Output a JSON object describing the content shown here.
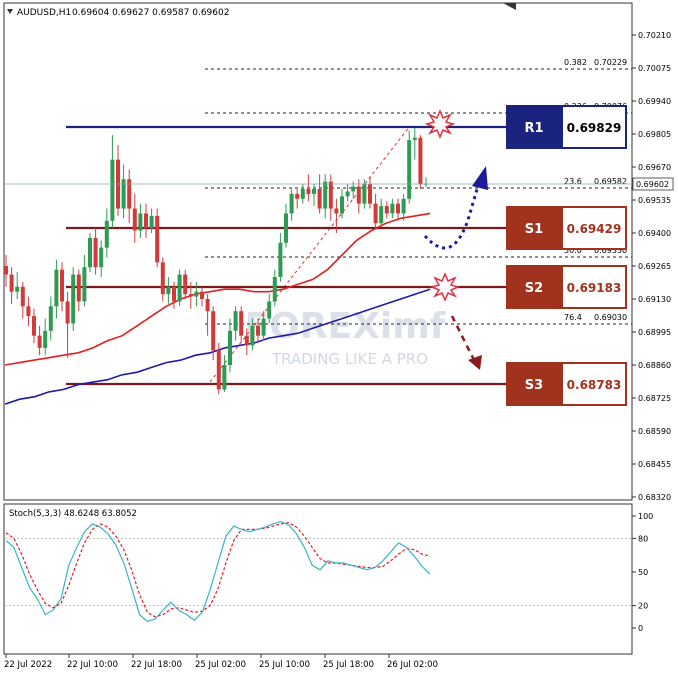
{
  "header": {
    "symbol": "AUDUSD,H1",
    "ohlc": "0.69604 0.69627 0.69587 0.69602"
  },
  "watermark": {
    "brand": "FOREXimf",
    "tagline": "TRADING LIKE A PRO"
  },
  "colors": {
    "bull": "#2e9a52",
    "bear": "#d23a3a",
    "ma_fast": "#e02020",
    "ma_slow": "#1c1ca8",
    "fib": "#222222",
    "r1": "#1a237e",
    "support": "#7a1a1a",
    "support_box": "#a0321e",
    "stoch_main": "#3bb3c8",
    "stoch_signal": "#e02020",
    "arrow_up": "#1c1c9a",
    "arrow_down": "#8b1a1a"
  },
  "chart_data": [
    {
      "type": "candlestick",
      "ylim": [
        0.6827,
        0.703
      ],
      "y_ticks": [
        "0.70210",
        "0.70075",
        "0.69940",
        "0.69805",
        "0.69670",
        "0.69535",
        "0.69400",
        "0.69265",
        "0.69130",
        "0.68995",
        "0.68860",
        "0.68725",
        "0.68590",
        "0.68455",
        "0.68320"
      ],
      "x_ticks": [
        "22 Jul 2022",
        "22 Jul 10:00",
        "22 Jul 18:00",
        "25 Jul 02:00",
        "25 Jul 10:00",
        "25 Jul 18:00",
        "26 Jul 02:00"
      ],
      "current_price": "0.69602",
      "candles": [
        [
          0.69265,
          0.6923,
          0.6931,
          0.6918
        ],
        [
          0.6923,
          0.6916,
          0.6926,
          0.6911
        ],
        [
          0.6916,
          0.6918,
          0.6924,
          0.6913
        ],
        [
          0.6918,
          0.691,
          0.692,
          0.6905
        ],
        [
          0.691,
          0.6906,
          0.6914,
          0.6902
        ],
        [
          0.6906,
          0.6898,
          0.6909,
          0.6895
        ],
        [
          0.6898,
          0.6893,
          0.6902,
          0.689
        ],
        [
          0.6893,
          0.69,
          0.6905,
          0.689
        ],
        [
          0.69,
          0.691,
          0.6914,
          0.6896
        ],
        [
          0.691,
          0.6925,
          0.6929,
          0.6905
        ],
        [
          0.6925,
          0.6912,
          0.6928,
          0.6908
        ],
        [
          0.6912,
          0.6903,
          0.6916,
          0.6889
        ],
        [
          0.6903,
          0.6923,
          0.6926,
          0.69
        ],
        [
          0.6923,
          0.6912,
          0.6925,
          0.6908
        ],
        [
          0.6912,
          0.6926,
          0.6931,
          0.691
        ],
        [
          0.6926,
          0.6938,
          0.694,
          0.6924
        ],
        [
          0.6938,
          0.6926,
          0.6942,
          0.6923
        ],
        [
          0.6926,
          0.6934,
          0.6937,
          0.6922
        ],
        [
          0.6934,
          0.6945,
          0.695,
          0.693
        ],
        [
          0.6945,
          0.697,
          0.698,
          0.6942
        ],
        [
          0.697,
          0.695,
          0.6976,
          0.6947
        ],
        [
          0.695,
          0.6962,
          0.6968,
          0.6946
        ],
        [
          0.6962,
          0.695,
          0.6966,
          0.6944
        ],
        [
          0.695,
          0.6941,
          0.6956,
          0.6936
        ],
        [
          0.6941,
          0.6948,
          0.6952,
          0.6938
        ],
        [
          0.6948,
          0.6942,
          0.6952,
          0.6938
        ],
        [
          0.6942,
          0.6947,
          0.695,
          0.694
        ],
        [
          0.6947,
          0.6928,
          0.695,
          0.6926
        ],
        [
          0.6928,
          0.6915,
          0.693,
          0.6912
        ],
        [
          0.6915,
          0.6918,
          0.6922,
          0.6911
        ],
        [
          0.6918,
          0.6912,
          0.692,
          0.6909
        ],
        [
          0.6912,
          0.6923,
          0.6925,
          0.691
        ],
        [
          0.6923,
          0.6915,
          0.6925,
          0.6913
        ],
        [
          0.6915,
          0.6914,
          0.692,
          0.6909
        ],
        [
          0.6914,
          0.6916,
          0.692,
          0.691
        ],
        [
          0.6916,
          0.6913,
          0.6918,
          0.691
        ],
        [
          0.6913,
          0.6908,
          0.6915,
          0.6898
        ],
        [
          0.6908,
          0.6892,
          0.691,
          0.6888
        ],
        [
          0.6892,
          0.6876,
          0.6895,
          0.6874
        ],
        [
          0.6876,
          0.6886,
          0.689,
          0.6875
        ],
        [
          0.6886,
          0.69,
          0.6905,
          0.6883
        ],
        [
          0.69,
          0.6908,
          0.691,
          0.6896
        ],
        [
          0.6908,
          0.6898,
          0.691,
          0.6895
        ],
        [
          0.6898,
          0.6894,
          0.6901,
          0.689
        ],
        [
          0.6894,
          0.6902,
          0.6905,
          0.6892
        ],
        [
          0.6902,
          0.6898,
          0.6905,
          0.6895
        ],
        [
          0.6898,
          0.6905,
          0.6908,
          0.6896
        ],
        [
          0.6905,
          0.6912,
          0.6915,
          0.6903
        ],
        [
          0.6912,
          0.6922,
          0.6925,
          0.691
        ],
        [
          0.6922,
          0.6936,
          0.694,
          0.692
        ],
        [
          0.6936,
          0.6948,
          0.6952,
          0.6934
        ],
        [
          0.6948,
          0.6956,
          0.6958,
          0.6945
        ],
        [
          0.6956,
          0.6954,
          0.6958,
          0.695
        ],
        [
          0.6954,
          0.6958,
          0.696,
          0.6952
        ],
        [
          0.6958,
          0.6956,
          0.6964,
          0.6953
        ],
        [
          0.6956,
          0.6958,
          0.696,
          0.6951
        ],
        [
          0.6958,
          0.695,
          0.6964,
          0.6948
        ],
        [
          0.695,
          0.6961,
          0.6964,
          0.6946
        ],
        [
          0.6961,
          0.695,
          0.6964,
          0.6945
        ],
        [
          0.695,
          0.6948,
          0.6954,
          0.694
        ],
        [
          0.6948,
          0.6955,
          0.6958,
          0.6946
        ],
        [
          0.6955,
          0.6957,
          0.696,
          0.6953
        ],
        [
          0.6957,
          0.6959,
          0.6961,
          0.6954
        ],
        [
          0.6959,
          0.6952,
          0.6962,
          0.6948
        ],
        [
          0.6952,
          0.696,
          0.6962,
          0.695
        ],
        [
          0.696,
          0.6952,
          0.6963,
          0.695
        ],
        [
          0.6952,
          0.6944,
          0.6956,
          0.6942
        ],
        [
          0.6944,
          0.6951,
          0.6954,
          0.6943
        ],
        [
          0.6951,
          0.6948,
          0.6953,
          0.6946
        ],
        [
          0.6948,
          0.6952,
          0.6954,
          0.6946
        ],
        [
          0.6952,
          0.6948,
          0.6954,
          0.6945
        ],
        [
          0.6948,
          0.6954,
          0.6956,
          0.6945
        ],
        [
          0.6954,
          0.6978,
          0.6982,
          0.6952
        ],
        [
          0.6978,
          0.6979,
          0.69829,
          0.697
        ],
        [
          0.6979,
          0.696,
          0.698,
          0.6958
        ],
        [
          0.696,
          0.69602,
          0.69627,
          0.69587
        ]
      ],
      "ma_fast": [
        0.6886,
        0.6887,
        0.6888,
        0.6889,
        0.689,
        0.6891,
        0.6893,
        0.6896,
        0.6898,
        0.6902,
        0.6906,
        0.691,
        0.6913,
        0.6915,
        0.6916,
        0.6917,
        0.6917,
        0.6916,
        0.6916,
        0.6917,
        0.6919,
        0.6921,
        0.6925,
        0.6931,
        0.6937,
        0.6941,
        0.6944,
        0.6946,
        0.6947,
        0.6948
      ],
      "ma_slow": [
        0.687,
        0.6872,
        0.6873,
        0.6875,
        0.6876,
        0.6878,
        0.6879,
        0.688,
        0.6882,
        0.6883,
        0.6885,
        0.6887,
        0.6888,
        0.689,
        0.6891,
        0.6893,
        0.6894,
        0.6895,
        0.6897,
        0.6898,
        0.6899,
        0.6901,
        0.6903,
        0.6905,
        0.6907,
        0.6909,
        0.6911,
        0.6913,
        0.6915,
        0.6917
      ]
    },
    {
      "type": "line",
      "title": "Stoch(5,3,3) 48.6248 63.8052",
      "ylim": [
        0,
        100
      ],
      "y_ticks": [
        "100",
        "80",
        "50",
        "20",
        "0"
      ],
      "series": [
        {
          "name": "main",
          "values": [
            78,
            72,
            54,
            36,
            26,
            12,
            16,
            26,
            56,
            72,
            86,
            93,
            90,
            84,
            74,
            58,
            36,
            12,
            6,
            8,
            16,
            23,
            16,
            12,
            7,
            14,
            34,
            58,
            82,
            91,
            88,
            86,
            88,
            90,
            93,
            95,
            92,
            84,
            72,
            56,
            52,
            60,
            58,
            58,
            56,
            54,
            52,
            54,
            60,
            68,
            76,
            72,
            64,
            55,
            48
          ]
        },
        {
          "name": "signal",
          "values": [
            85,
            80,
            66,
            48,
            34,
            22,
            18,
            22,
            38,
            58,
            76,
            88,
            93,
            90,
            82,
            70,
            52,
            30,
            14,
            10,
            12,
            17,
            18,
            16,
            14,
            15,
            20,
            35,
            58,
            78,
            88,
            88,
            88,
            89,
            91,
            93,
            94,
            90,
            82,
            72,
            62,
            58,
            58,
            57,
            56,
            55,
            54,
            54,
            55,
            60,
            66,
            71,
            70,
            66,
            64
          ]
        }
      ]
    }
  ],
  "fib_levels": [
    {
      "ratio": "0.382",
      "price": "0.70229"
    },
    {
      "ratio": "0.236",
      "price": "0.70076"
    },
    {
      "ratio": "23.6",
      "price": "0.69582"
    },
    {
      "ratio": "50.0",
      "price": "0.69330"
    },
    {
      "ratio": "76.4",
      "price": "0.69030"
    }
  ],
  "levels": [
    {
      "label": "R1",
      "price": "0.69829"
    },
    {
      "label": "S1",
      "price": "0.69429"
    },
    {
      "label": "S2",
      "price": "0.69183"
    },
    {
      "label": "S3",
      "price": "0.68783"
    }
  ]
}
